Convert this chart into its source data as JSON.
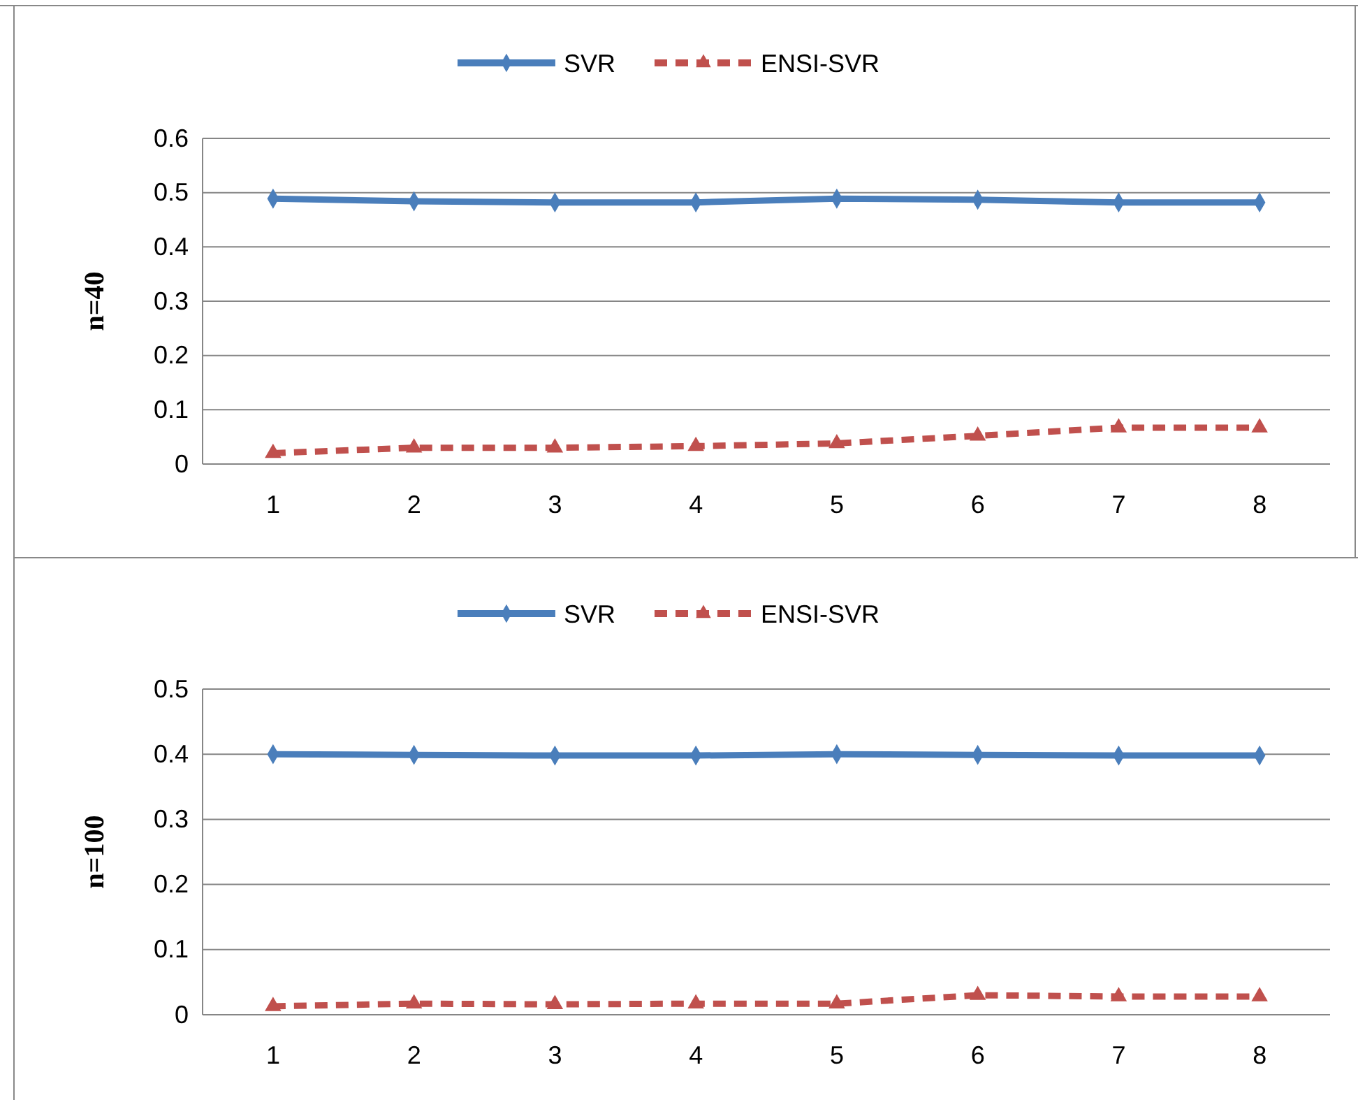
{
  "chart_data": [
    {
      "type": "line",
      "ylabel": "n=40",
      "categories": [
        "1",
        "2",
        "3",
        "4",
        "5",
        "6",
        "7",
        "8"
      ],
      "ylim": [
        0,
        0.6
      ],
      "yticks": [
        0,
        0.1,
        0.2,
        0.3,
        0.4,
        0.5,
        0.6
      ],
      "grid": "y",
      "legend": "top",
      "series": [
        {
          "name": "SVR",
          "color": "#4a7ebb",
          "marker": "diamond",
          "line_style": "solid",
          "values": [
            0.489,
            0.484,
            0.482,
            0.482,
            0.489,
            0.487,
            0.482,
            0.482
          ]
        },
        {
          "name": "ENSI-SVR",
          "color": "#c0504d",
          "marker": "triangle",
          "line_style": "dashed",
          "values": [
            0.02,
            0.03,
            0.03,
            0.033,
            0.038,
            0.052,
            0.067,
            0.067
          ]
        }
      ]
    },
    {
      "type": "line",
      "ylabel": "n=100",
      "categories": [
        "1",
        "2",
        "3",
        "4",
        "5",
        "6",
        "7",
        "8"
      ],
      "ylim": [
        0,
        0.5
      ],
      "yticks": [
        0,
        0.1,
        0.2,
        0.3,
        0.4,
        0.5
      ],
      "grid": "y",
      "legend": "top",
      "series": [
        {
          "name": "SVR",
          "color": "#4a7ebb",
          "marker": "diamond",
          "line_style": "solid",
          "values": [
            0.4,
            0.399,
            0.398,
            0.398,
            0.4,
            0.399,
            0.398,
            0.398
          ]
        },
        {
          "name": "ENSI-SVR",
          "color": "#c0504d",
          "marker": "triangle",
          "line_style": "dashed",
          "values": [
            0.013,
            0.017,
            0.016,
            0.017,
            0.017,
            0.03,
            0.028,
            0.028
          ]
        }
      ]
    }
  ]
}
